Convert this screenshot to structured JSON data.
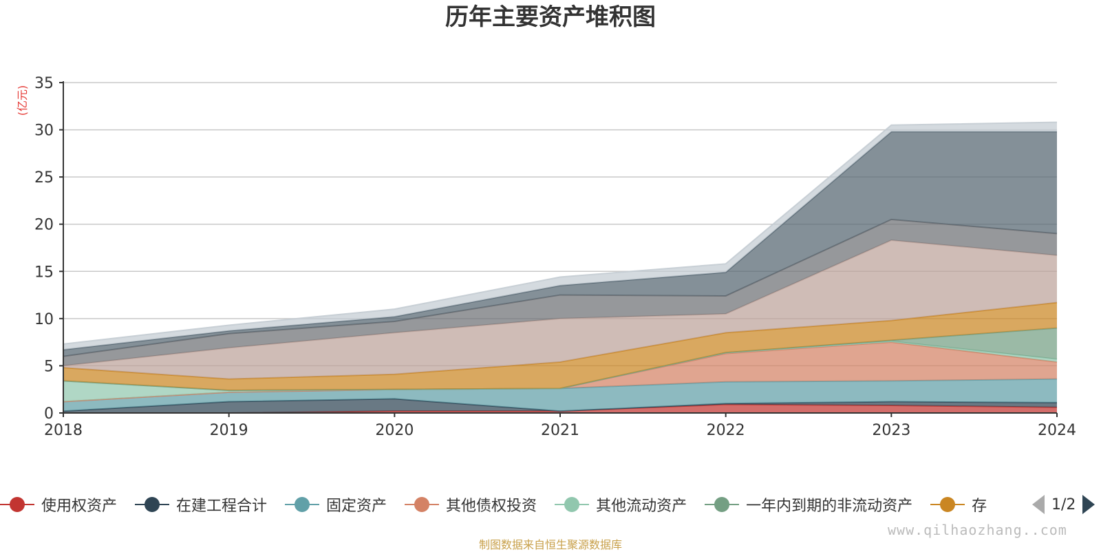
{
  "chart_data": {
    "type": "area",
    "stacked": true,
    "title": "历年主要资产堆积图",
    "unit": "(亿元)",
    "categories": [
      "2018",
      "2019",
      "2020",
      "2021",
      "2022",
      "2023",
      "2024"
    ],
    "ylim": [
      0,
      35
    ],
    "yticks": [
      "0",
      "5",
      "10",
      "15",
      "20",
      "25",
      "30",
      "35"
    ],
    "grid": true,
    "legend_position": "bottom",
    "series": [
      {
        "name": "使用权资产",
        "color": "#c23531",
        "values": [
          0,
          0,
          0.2,
          0.2,
          0.9,
          0.8,
          0.6
        ]
      },
      {
        "name": "在建工程合计",
        "color": "#2f4554",
        "values": [
          0.2,
          1.2,
          1.3,
          0,
          0.1,
          0.4,
          0.5
        ]
      },
      {
        "name": "固定资产",
        "color": "#61a0a8",
        "values": [
          1.0,
          1.0,
          1.0,
          2.4,
          2.3,
          2.2,
          2.5
        ]
      },
      {
        "name": "其他债权投资",
        "color": "#d48265",
        "values": [
          0,
          0,
          0,
          0,
          3.0,
          4.1,
          1.8
        ]
      },
      {
        "name": "其他流动资产",
        "color": "#91c7ae",
        "values": [
          2.2,
          0.2,
          0,
          0,
          0.1,
          0.1,
          0.3
        ]
      },
      {
        "name": "一年内到期的非流动资产",
        "color": "#749f83",
        "values": [
          0,
          0,
          0,
          0,
          0,
          0.1,
          3.3
        ]
      },
      {
        "name": "存",
        "color": "#ca8622",
        "values": [
          1.4,
          1.2,
          1.6,
          2.8,
          2.1,
          2.1,
          2.7
        ]
      },
      {
        "color": "#bda29a",
        "values": [
          0.2,
          3.3,
          4.4,
          4.6,
          2.0,
          8.5,
          5.0
        ]
      },
      {
        "color": "#6e7074",
        "values": [
          1.0,
          1.5,
          1.2,
          2.5,
          1.9,
          2.2,
          2.3
        ]
      },
      {
        "color": "#546570",
        "values": [
          0.7,
          0.3,
          0.5,
          1.0,
          2.5,
          9.3,
          10.8
        ]
      },
      {
        "color": "#c4ccd3",
        "values": [
          0.6,
          0.6,
          0.8,
          0.9,
          0.9,
          0.7,
          1.0
        ]
      }
    ]
  },
  "legend": {
    "items": [
      {
        "label": "使用权资产",
        "color": "#c23531"
      },
      {
        "label": "在建工程合计",
        "color": "#2f4554"
      },
      {
        "label": "固定资产",
        "color": "#61a0a8"
      },
      {
        "label": "其他债权投资",
        "color": "#d48265"
      },
      {
        "label": "其他流动资产",
        "color": "#91c7ae"
      },
      {
        "label": "一年内到期的非流动资产",
        "color": "#749f83"
      },
      {
        "label": "存",
        "color": "#ca8622"
      }
    ],
    "page_text": "1/2"
  },
  "footer": {
    "source": "制图数据来自恒生聚源数据库",
    "watermark": "www.qilhaozhang..com"
  }
}
